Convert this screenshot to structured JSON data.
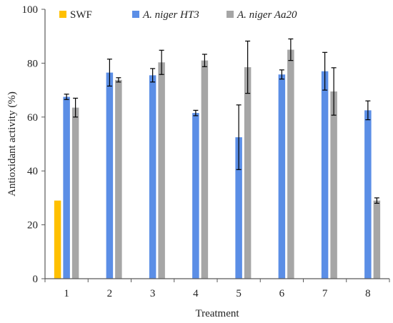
{
  "chart_data": {
    "type": "bar",
    "xlabel": "Treatment",
    "ylabel": "Antioxidant activity (%)",
    "ylim": [
      0,
      100
    ],
    "yticks": [
      0,
      20,
      40,
      60,
      80,
      100
    ],
    "grid": false,
    "legend_position": "top",
    "categories": [
      "1",
      "2",
      "3",
      "4",
      "5",
      "6",
      "7",
      "8"
    ],
    "series": [
      {
        "name": "SWF",
        "italic": false,
        "color": "#FFC000",
        "values": [
          29,
          null,
          null,
          null,
          null,
          null,
          null,
          null
        ],
        "errors": [
          null,
          null,
          null,
          null,
          null,
          null,
          null,
          null
        ]
      },
      {
        "name": "A. niger HT3",
        "italic": true,
        "color": "#5B8EE6",
        "values": [
          67.5,
          76.5,
          75.5,
          61.5,
          52.5,
          75.8,
          77,
          62.5
        ],
        "errors": [
          1,
          5,
          2.5,
          1,
          12,
          1.7,
          7,
          3.5
        ]
      },
      {
        "name": "A. niger Aa20",
        "italic": true,
        "color": "#A6A6A6",
        "values": [
          63.5,
          73.8,
          80.3,
          81,
          78.5,
          85,
          69.5,
          29
        ],
        "errors": [
          3.5,
          0.8,
          4.5,
          2.3,
          9.7,
          4,
          8.8,
          1
        ]
      }
    ]
  }
}
